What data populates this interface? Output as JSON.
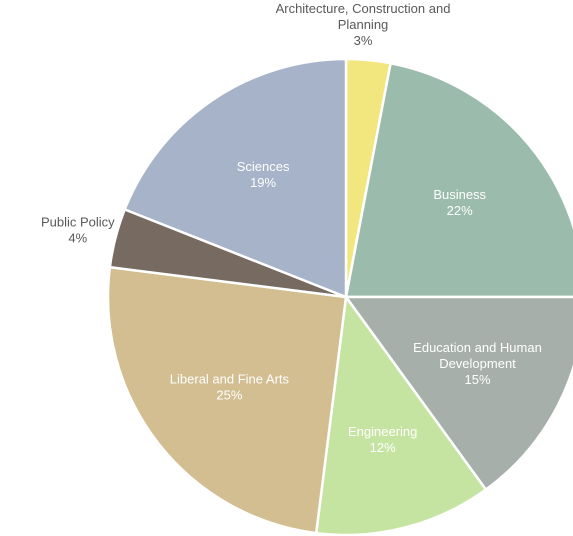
{
  "chart_data": {
    "type": "pie",
    "title": "",
    "slices": [
      {
        "category": "Architecture, Construction and Planning",
        "lines": [
          "Architecture, Construction and",
          "Planning"
        ],
        "value": 3,
        "label": "3%",
        "color": "#f2e77e",
        "label_pos": "outside"
      },
      {
        "category": "Business",
        "lines": [
          "Business"
        ],
        "value": 22,
        "label": "22%",
        "color": "#9bbcad",
        "label_pos": "inside"
      },
      {
        "category": "Education and Human Development",
        "lines": [
          "Education and Human",
          "Development"
        ],
        "value": 15,
        "label": "15%",
        "color": "#a7afaa",
        "label_pos": "inside"
      },
      {
        "category": "Engineering",
        "lines": [
          "Engineering"
        ],
        "value": 12,
        "label": "12%",
        "color": "#c6e4a1",
        "label_pos": "inside"
      },
      {
        "category": "Liberal and Fine Arts",
        "lines": [
          "Liberal and Fine Arts"
        ],
        "value": 25,
        "label": "25%",
        "color": "#d3be91",
        "label_pos": "inside"
      },
      {
        "category": "Public Policy",
        "lines": [
          "Public Policy"
        ],
        "value": 4,
        "label": "4%",
        "color": "#776a61",
        "label_pos": "outside"
      },
      {
        "category": "Sciences",
        "lines": [
          "Sciences"
        ],
        "value": 19,
        "label": "19%",
        "color": "#a6b3c8",
        "label_pos": "inside"
      }
    ],
    "start": "12 o'clock",
    "direction": "clockwise"
  }
}
